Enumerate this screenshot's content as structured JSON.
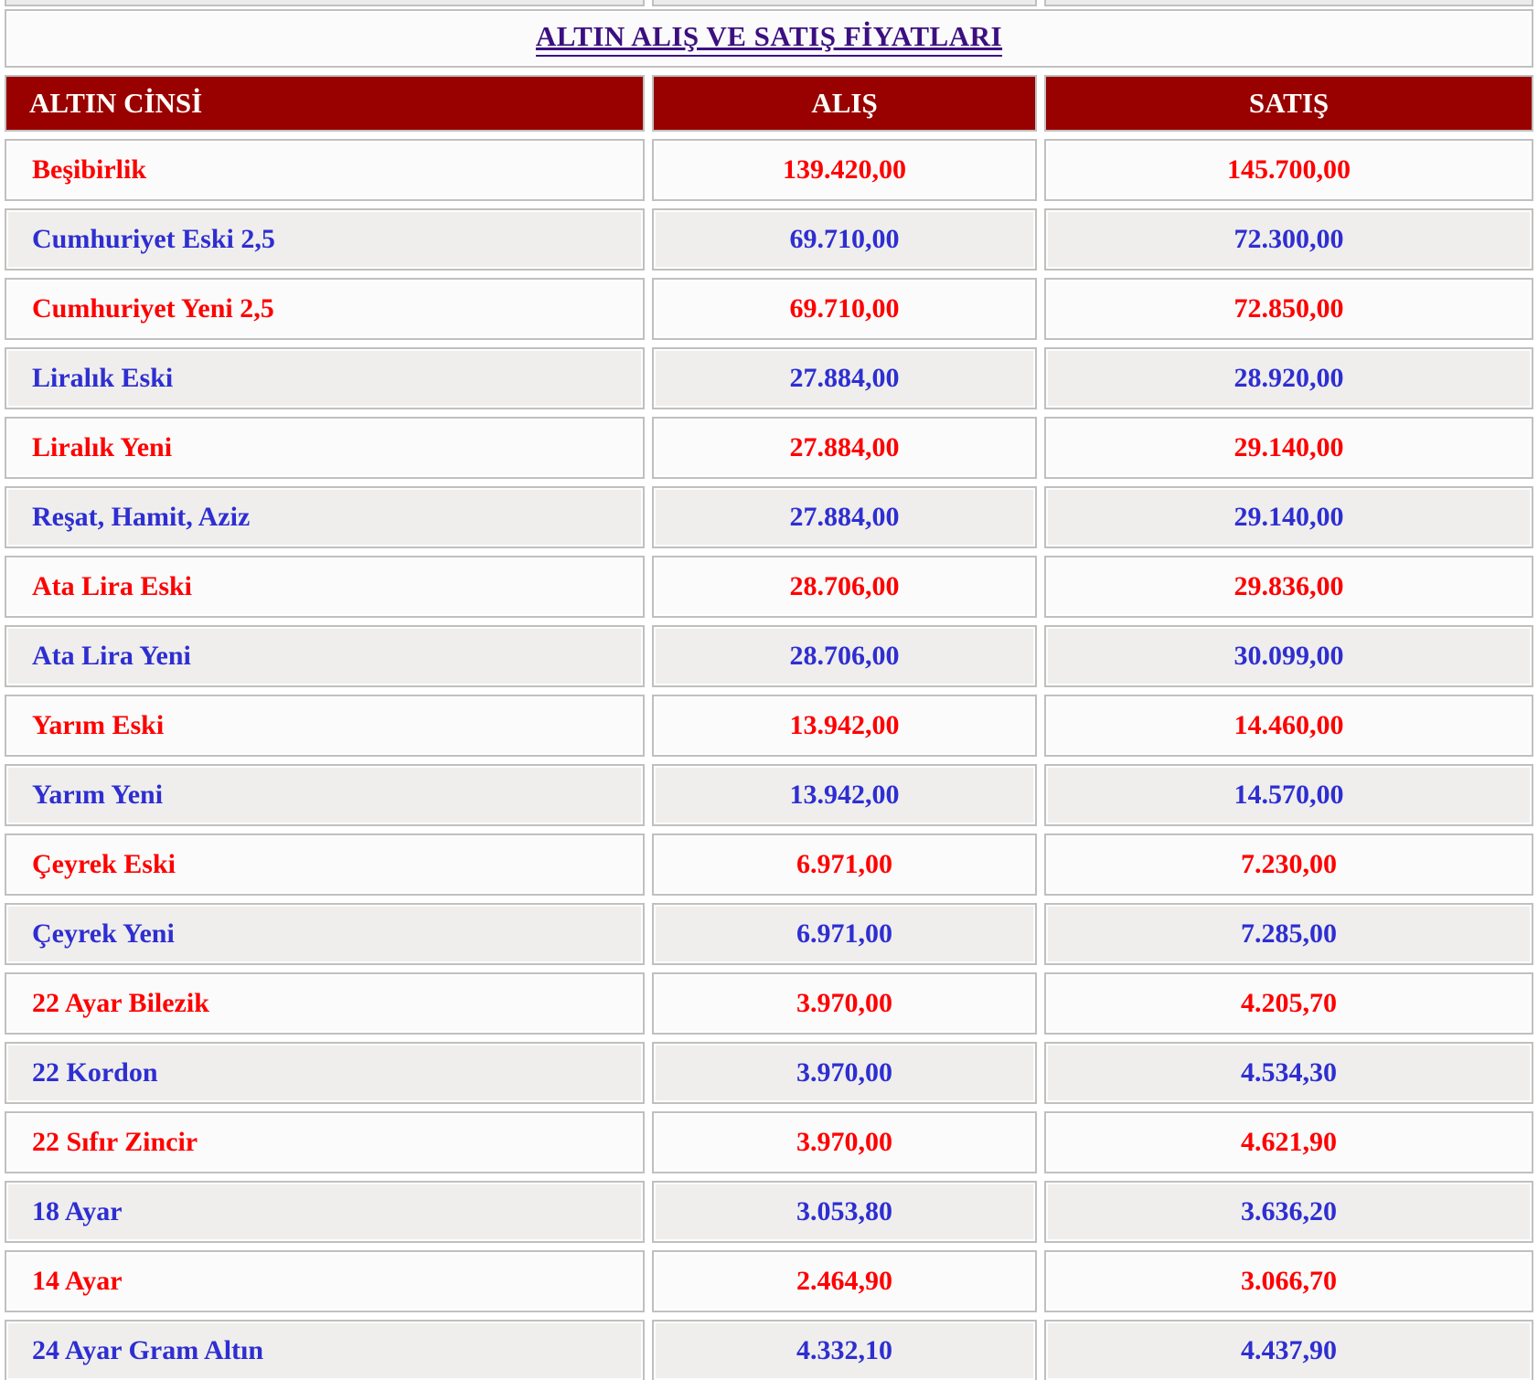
{
  "title": "ALTIN ALIŞ VE SATIŞ FİYATLARI",
  "table": {
    "columns": [
      "ALTIN CİNSİ",
      "ALIŞ",
      "SATIŞ"
    ],
    "rows": [
      {
        "name": "Beşibirlik",
        "buy": "139.420,00",
        "sell": "145.700,00",
        "color": "red"
      },
      {
        "name": "Cumhuriyet Eski 2,5",
        "buy": "69.710,00",
        "sell": "72.300,00",
        "color": "blue"
      },
      {
        "name": "Cumhuriyet Yeni 2,5",
        "buy": "69.710,00",
        "sell": "72.850,00",
        "color": "red"
      },
      {
        "name": "Liralık Eski",
        "buy": "27.884,00",
        "sell": "28.920,00",
        "color": "blue"
      },
      {
        "name": "Liralık Yeni",
        "buy": "27.884,00",
        "sell": "29.140,00",
        "color": "red"
      },
      {
        "name": "Reşat, Hamit, Aziz",
        "buy": "27.884,00",
        "sell": "29.140,00",
        "color": "blue"
      },
      {
        "name": "Ata Lira Eski",
        "buy": "28.706,00",
        "sell": "29.836,00",
        "color": "red"
      },
      {
        "name": "Ata Lira Yeni",
        "buy": "28.706,00",
        "sell": "30.099,00",
        "color": "blue"
      },
      {
        "name": "Yarım Eski",
        "buy": "13.942,00",
        "sell": "14.460,00",
        "color": "red"
      },
      {
        "name": "Yarım Yeni",
        "buy": "13.942,00",
        "sell": "14.570,00",
        "color": "blue"
      },
      {
        "name": "Çeyrek Eski",
        "buy": "6.971,00",
        "sell": "7.230,00",
        "color": "red"
      },
      {
        "name": "Çeyrek Yeni",
        "buy": "6.971,00",
        "sell": "7.285,00",
        "color": "blue"
      },
      {
        "name": "22 Ayar Bilezik",
        "buy": "3.970,00",
        "sell": "4.205,70",
        "color": "red"
      },
      {
        "name": "22 Kordon",
        "buy": "3.970,00",
        "sell": "4.534,30",
        "color": "blue"
      },
      {
        "name": "22 Sıfır Zincir",
        "buy": "3.970,00",
        "sell": "4.621,90",
        "color": "red"
      },
      {
        "name": "18 Ayar",
        "buy": "3.053,80",
        "sell": "3.636,20",
        "color": "blue"
      },
      {
        "name": "14 Ayar",
        "buy": "2.464,90",
        "sell": "3.066,70",
        "color": "red"
      },
      {
        "name": "24 Ayar Gram Altın",
        "buy": "4.332,10",
        "sell": "4.437,90",
        "color": "blue"
      }
    ]
  },
  "colors": {
    "header_background": "#990000",
    "header_text": "#fffdf8",
    "row_red_text": "#ff0000",
    "row_blue_text": "#2e2ed2",
    "title_text": "#3c0f80",
    "row_white_background": "#fbfbfb",
    "row_gray_background": "#efeeec",
    "cell_border": "#c0c0c0"
  }
}
